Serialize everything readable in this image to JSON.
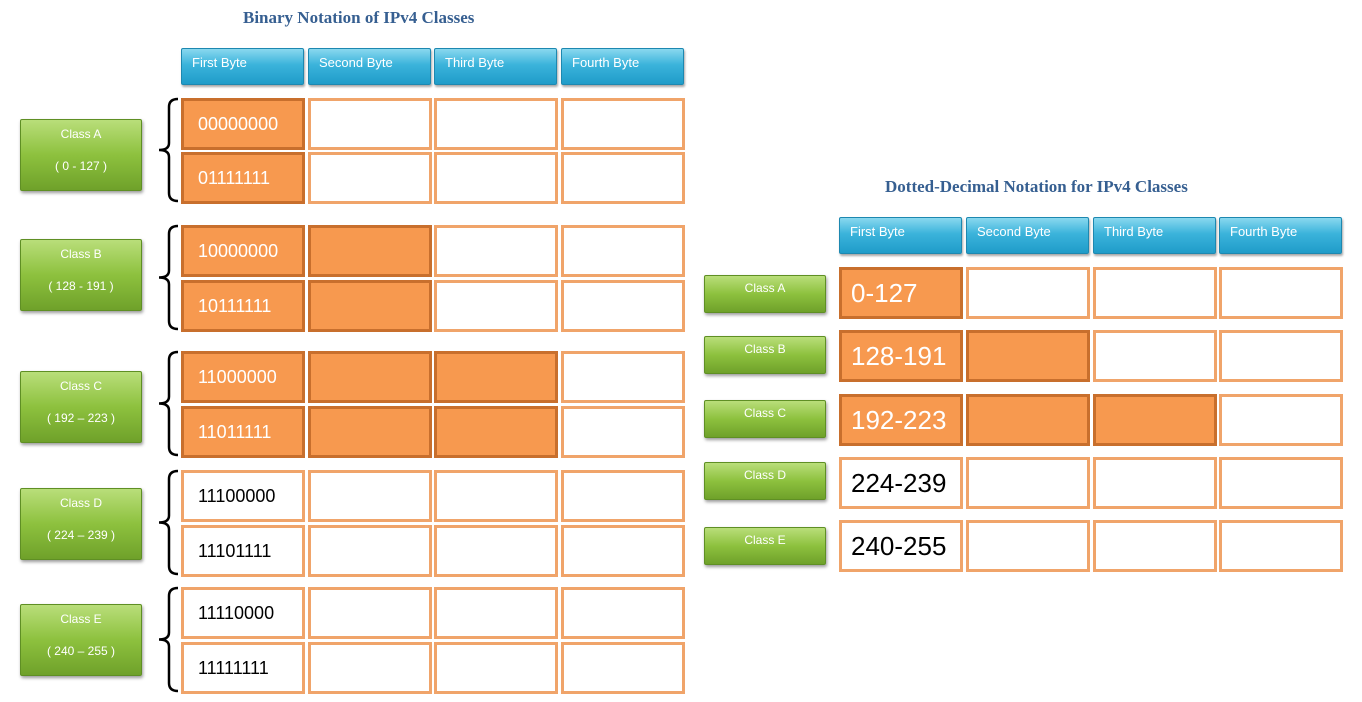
{
  "binary": {
    "title": "Binary Notation of  IPv4 Classes",
    "headers": [
      "First Byte",
      "Second Byte",
      "Third Byte",
      "Fourth Byte"
    ],
    "classes": [
      {
        "name": "Class A",
        "range": "( 0 - 127 )",
        "rows": [
          "00000000",
          "01111111"
        ],
        "highlighted_bytes": 1
      },
      {
        "name": "Class B",
        "range": "( 128 - 191 )",
        "rows": [
          "10000000",
          "10111111"
        ],
        "highlighted_bytes": 2
      },
      {
        "name": "Class C",
        "range": "( 192 – 223  )",
        "rows": [
          "11000000",
          "11011111"
        ],
        "highlighted_bytes": 3
      },
      {
        "name": "Class D",
        "range": "( 224 – 239  )",
        "rows": [
          "11100000",
          "11101111"
        ],
        "highlighted_bytes": 0
      },
      {
        "name": "Class E",
        "range": "( 240 – 255  )",
        "rows": [
          "11110000",
          "11111111"
        ],
        "highlighted_bytes": 0
      }
    ]
  },
  "decimal": {
    "title": "Dotted-Decimal Notation for IPv4 Classes",
    "headers": [
      "First Byte",
      "Second Byte",
      "Third Byte",
      "Fourth Byte"
    ],
    "classes": [
      {
        "name": "Class A",
        "value": "0-127",
        "highlighted_bytes": 1
      },
      {
        "name": "Class B",
        "value": "128-191",
        "highlighted_bytes": 2
      },
      {
        "name": "Class C",
        "value": "192-223",
        "highlighted_bytes": 3
      },
      {
        "name": "Class D",
        "value": "224-239",
        "highlighted_bytes": 0
      },
      {
        "name": "Class E",
        "value": "240-255",
        "highlighted_bytes": 0
      }
    ]
  },
  "colors": {
    "highlight_fill": "#f7994f",
    "cell_border": "#f0a46a",
    "header_blue": "#2aa7d6",
    "class_green": "#8dc13e",
    "title_blue": "#365f91"
  }
}
